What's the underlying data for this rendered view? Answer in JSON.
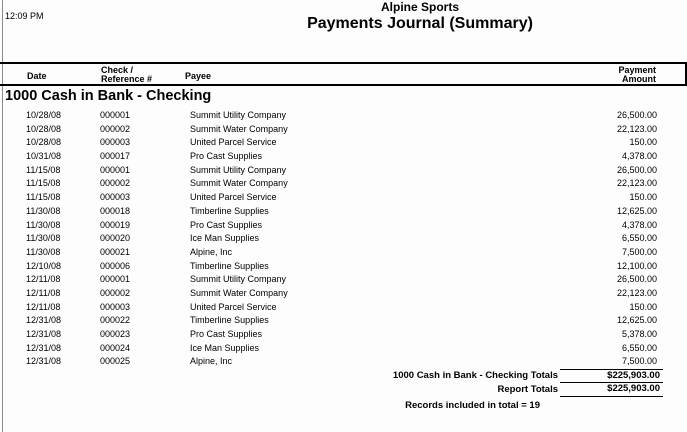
{
  "meta": {
    "time": "12:09 PM"
  },
  "header": {
    "company": "Alpine Sports",
    "report_title": "Payments Journal (Summary)"
  },
  "columns": {
    "date": "Date",
    "check_line1": "Check /",
    "check_line2": "Reference #",
    "payee": "Payee",
    "amount_line1": "Payment",
    "amount_line2": "Amount"
  },
  "section": {
    "title": "1000 Cash in Bank - Checking"
  },
  "table": {
    "rows": [
      {
        "date": "10/28/08",
        "check": "000001",
        "payee": "Summit Utility Company",
        "amount": "26,500.00"
      },
      {
        "date": "10/28/08",
        "check": "000002",
        "payee": "Summit Water Company",
        "amount": "22,123.00"
      },
      {
        "date": "10/28/08",
        "check": "000003",
        "payee": "United Parcel Service",
        "amount": "150.00"
      },
      {
        "date": "10/31/08",
        "check": "000017",
        "payee": "Pro Cast Supplies",
        "amount": "4,378.00"
      },
      {
        "date": "11/15/08",
        "check": "000001",
        "payee": "Summit Utility Company",
        "amount": "26,500.00"
      },
      {
        "date": "11/15/08",
        "check": "000002",
        "payee": "Summit Water Company",
        "amount": "22,123.00"
      },
      {
        "date": "11/15/08",
        "check": "000003",
        "payee": "United Parcel Service",
        "amount": "150.00"
      },
      {
        "date": "11/30/08",
        "check": "000018",
        "payee": "Timberline Supplies",
        "amount": "12,625.00"
      },
      {
        "date": "11/30/08",
        "check": "000019",
        "payee": "Pro Cast Supplies",
        "amount": "4,378.00"
      },
      {
        "date": "11/30/08",
        "check": "000020",
        "payee": "Ice Man Supplies",
        "amount": "6,550.00"
      },
      {
        "date": "11/30/08",
        "check": "000021",
        "payee": "Alpine, Inc",
        "amount": "7,500.00"
      },
      {
        "date": "12/10/08",
        "check": "000006",
        "payee": "Timberline Supplies",
        "amount": "12,100.00"
      },
      {
        "date": "12/11/08",
        "check": "000001",
        "payee": "Summit Utility Company",
        "amount": "26,500.00"
      },
      {
        "date": "12/11/08",
        "check": "000002",
        "payee": "Summit Water Company",
        "amount": "22,123.00"
      },
      {
        "date": "12/11/08",
        "check": "000003",
        "payee": "United Parcel Service",
        "amount": "150.00"
      },
      {
        "date": "12/31/08",
        "check": "000022",
        "payee": "Timberline Supplies",
        "amount": "12,625.00"
      },
      {
        "date": "12/31/08",
        "check": "000023",
        "payee": "Pro Cast Supplies",
        "amount": "5,378.00"
      },
      {
        "date": "12/31/08",
        "check": "000024",
        "payee": "Ice Man Supplies",
        "amount": "6,550.00"
      },
      {
        "date": "12/31/08",
        "check": "000025",
        "payee": "Alpine, Inc",
        "amount": "7,500.00"
      }
    ]
  },
  "totals": {
    "section_label": "1000 Cash in Bank - Checking Totals",
    "section_amount": "$225,903.00",
    "report_label": "Report Totals",
    "report_amount": "$225,903.00",
    "records_note": "Records included in total = 19"
  },
  "colors": {
    "rule": "#000000",
    "page_edge_line": "#8a8a8a",
    "background": "#fdfdfd",
    "text": "#000000"
  }
}
